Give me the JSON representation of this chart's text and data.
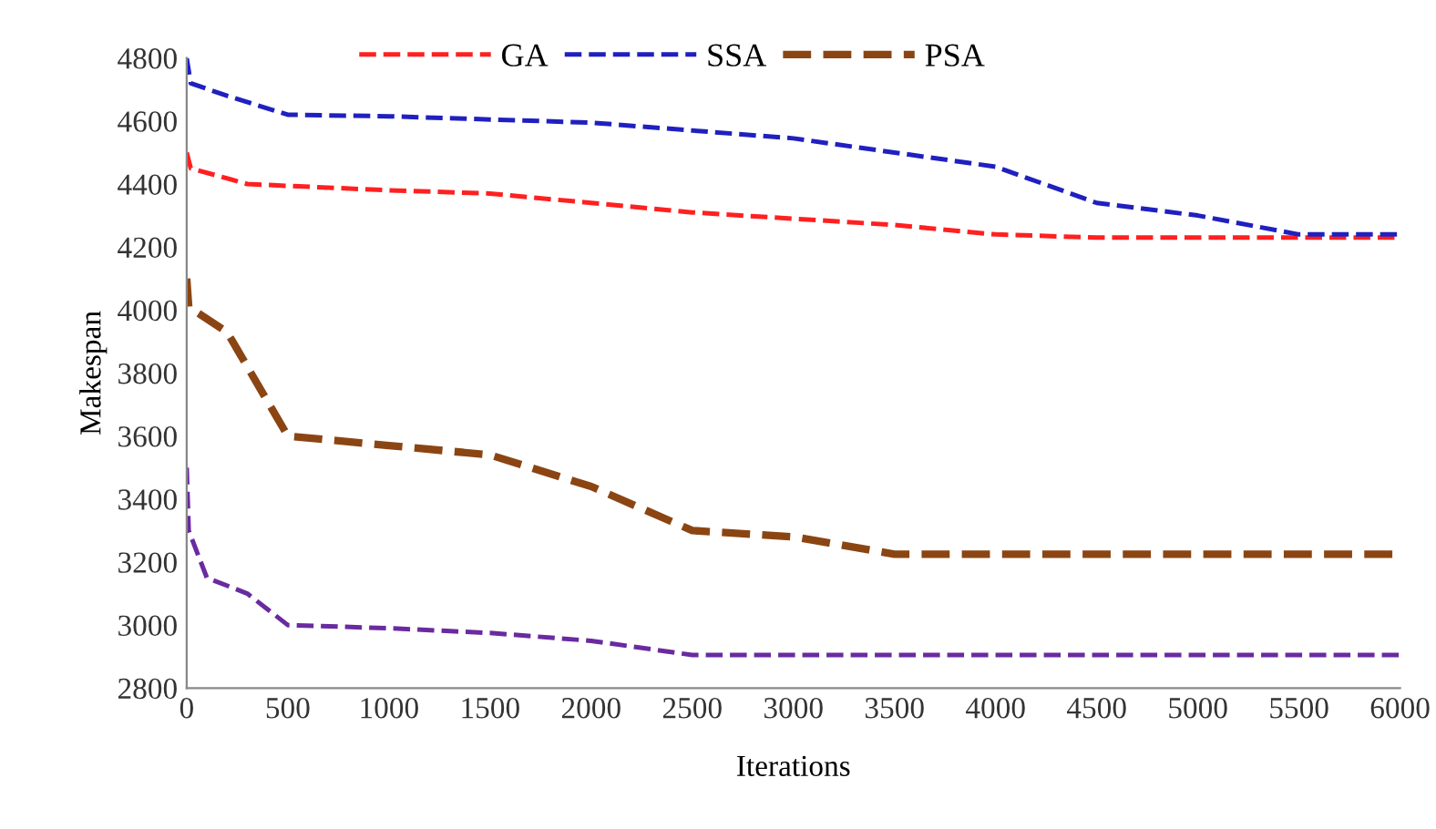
{
  "chart_data": {
    "type": "line",
    "xlabel": "Iterations",
    "ylabel": "Makespan",
    "xlim": [
      0,
      6000
    ],
    "ylim": [
      2800,
      4800
    ],
    "xticks": [
      0,
      500,
      1000,
      1500,
      2000,
      2500,
      3000,
      3500,
      4000,
      4500,
      5000,
      5500,
      6000
    ],
    "yticks": [
      2800,
      3000,
      3200,
      3400,
      3600,
      3800,
      4000,
      4200,
      4400,
      4600,
      4800
    ],
    "grid": false,
    "legend": "top",
    "line_style": "dashed",
    "marker": "none",
    "series": [
      {
        "name": "GA",
        "color": "#ff2020",
        "x": [
          0,
          20,
          300,
          1000,
          1500,
          2000,
          2500,
          3000,
          3500,
          4000,
          4500,
          5000,
          5500,
          6000
        ],
        "values": [
          4500,
          4450,
          4400,
          4380,
          4370,
          4340,
          4310,
          4290,
          4270,
          4240,
          4230,
          4230,
          4230,
          4230
        ]
      },
      {
        "name": "SSA",
        "color": "#2020c0",
        "x": [
          0,
          20,
          200,
          500,
          1000,
          1500,
          2000,
          2500,
          3000,
          3500,
          4000,
          4500,
          5000,
          5500,
          6000
        ],
        "values": [
          4800,
          4720,
          4680,
          4620,
          4615,
          4605,
          4595,
          4570,
          4545,
          4500,
          4455,
          4340,
          4300,
          4240,
          4240
        ]
      },
      {
        "name": "PSA",
        "color": "#8b4513",
        "x": [
          0,
          10,
          200,
          500,
          1000,
          1500,
          2000,
          2500,
          3000,
          3500,
          6000
        ],
        "values": [
          4100,
          4010,
          3930,
          3600,
          3570,
          3540,
          3440,
          3300,
          3280,
          3225,
          3225
        ]
      },
      {
        "color": "#6a2aa0",
        "x": [
          0,
          10,
          100,
          300,
          500,
          1000,
          1500,
          2000,
          2500,
          6000
        ],
        "values": [
          3500,
          3300,
          3150,
          3100,
          3000,
          2990,
          2975,
          2950,
          2905,
          2905
        ]
      }
    ]
  }
}
